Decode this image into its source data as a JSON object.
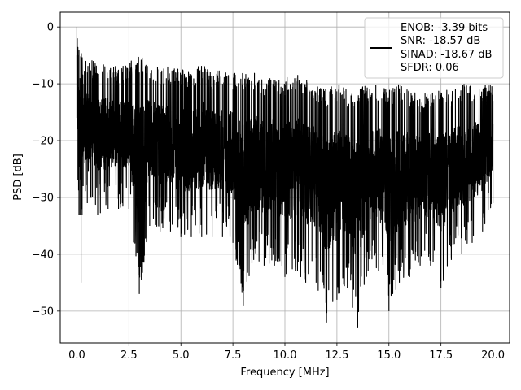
{
  "chart_data": {
    "type": "line",
    "xlabel": "Frequency [MHz]",
    "ylabel": "PSD [dB]",
    "xlim": [
      -0.8,
      20.8
    ],
    "ylim": [
      -55.6,
      2.6
    ],
    "xticks": [
      0.0,
      2.5,
      5.0,
      7.5,
      10.0,
      12.5,
      15.0,
      17.5,
      20.0
    ],
    "xtick_labels": [
      "0.0",
      "2.5",
      "5.0",
      "7.5",
      "10.0",
      "12.5",
      "15.0",
      "17.5",
      "20.0"
    ],
    "yticks": [
      0,
      -10,
      -20,
      -30,
      -40,
      -50
    ],
    "ytick_labels": [
      "0",
      "−10",
      "−20",
      "−30",
      "−40",
      "−50"
    ],
    "grid": true,
    "legend_position": "upper-right",
    "legend_lines": [
      "ENOB: -3.39 bits",
      "SNR: -18.57 dB",
      "SINAD: -18.67 dB",
      "SFDR: 0.06"
    ],
    "line_color": "#000000",
    "series": [
      {
        "x": [
          0.0,
          0.02,
          0.05,
          0.1,
          0.15,
          0.2,
          0.25,
          0.3,
          0.5,
          0.75,
          1.0,
          1.5,
          2.0,
          2.5,
          3.0,
          3.5,
          4.0,
          4.5,
          5.0,
          5.5,
          6.0,
          6.5,
          7.0,
          7.5,
          8.0,
          8.5,
          9.0,
          9.5,
          10.0,
          10.5,
          11.0,
          11.5,
          12.0,
          12.5,
          13.0,
          13.5,
          14.0,
          14.5,
          15.0,
          15.5,
          16.0,
          16.5,
          17.0,
          17.5,
          18.0,
          18.5,
          19.0,
          19.5,
          20.0
        ],
        "upper": [
          0,
          -2,
          -5,
          -4,
          -9,
          -6,
          -8,
          -10,
          -8,
          -9,
          -9,
          -9,
          -10,
          -9,
          -8,
          -9,
          -10,
          -10,
          -10,
          -11,
          -9,
          -11,
          -10,
          -11,
          -11,
          -11,
          -12,
          -12,
          -12,
          -11,
          -12,
          -13,
          -14,
          -13,
          -14,
          -14,
          -13,
          -13,
          -14,
          -13,
          -14,
          -15,
          -14,
          -14,
          -14,
          -13,
          -13,
          -13,
          -13
        ],
        "lower": [
          -16,
          -18,
          -27,
          -33,
          -33,
          -45,
          -33,
          -28,
          -31,
          -30,
          -33,
          -32,
          -32,
          -32,
          -47,
          -35,
          -36,
          -36,
          -37,
          -37,
          -37,
          -37,
          -37,
          -38,
          -49,
          -41,
          -42,
          -42,
          -44,
          -43,
          -45,
          -45,
          -52,
          -48,
          -46,
          -53,
          -43,
          -43,
          -50,
          -45,
          -44,
          -42,
          -42,
          -46,
          -41,
          -40,
          -38,
          -36,
          -31
        ]
      }
    ]
  }
}
